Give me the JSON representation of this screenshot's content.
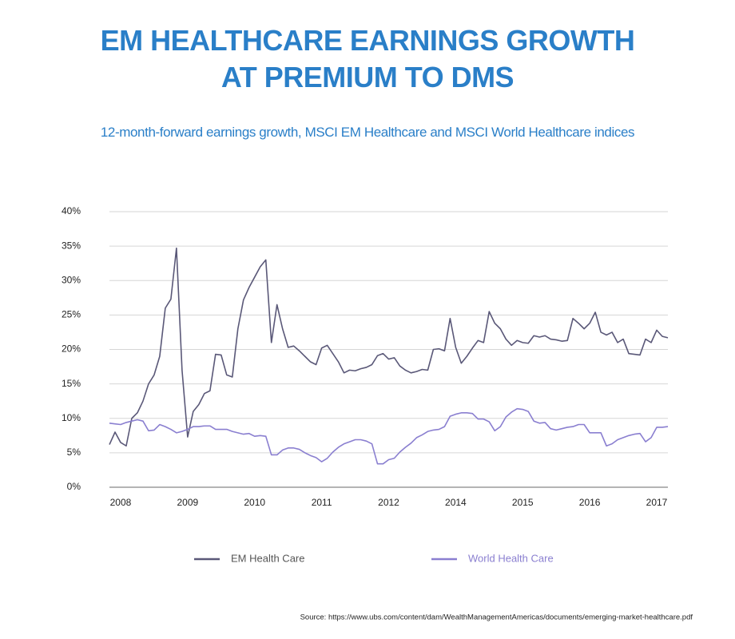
{
  "chart_data": {
    "type": "line",
    "title": "EM HEALTHCARE EARNINGS GROWTH AT PREMIUM TO DMS",
    "subtitle": "12-month-forward earnings growth, MSCI EM Healthcare and MSCI World Healthcare indices",
    "source": "Source:  https://www.ubs.com/content/dam/WealthManagementAmericas/documents/emerging-market-healthcare.pdf",
    "categories": [
      null,
      null,
      "2008",
      null,
      null,
      null,
      null,
      null,
      null,
      null,
      null,
      null,
      null,
      null,
      "2009",
      null,
      null,
      null,
      null,
      null,
      null,
      null,
      null,
      null,
      null,
      null,
      "2010",
      null,
      null,
      null,
      null,
      null,
      null,
      null,
      null,
      null,
      null,
      null,
      "2011",
      null,
      null,
      null,
      null,
      null,
      null,
      null,
      null,
      null,
      null,
      null,
      "2012",
      null,
      null,
      null,
      null,
      null,
      null,
      null,
      null,
      null,
      null,
      null,
      "2014",
      null,
      null,
      null,
      null,
      null,
      null,
      null,
      null,
      null,
      null,
      null,
      "2015",
      null,
      null,
      null,
      null,
      null,
      null,
      null,
      null,
      null,
      null,
      null,
      "2016",
      null,
      null,
      null,
      null,
      null,
      null,
      null,
      null,
      null,
      null,
      null,
      "2017",
      null,
      null
    ],
    "series": [
      {
        "name": "EM Health Care",
        "color": "#5a5878",
        "values": [
          6.2,
          8,
          6.5,
          6.0,
          10,
          10.8,
          12.5,
          15,
          16.3,
          19,
          26,
          27.3,
          34.7,
          17,
          7.3,
          11,
          12,
          13.6,
          14,
          19.3,
          19.2,
          16.3,
          16,
          23,
          27.2,
          29,
          30.5,
          32,
          33,
          21,
          26.5,
          23,
          20.3,
          20.5,
          19.8,
          19,
          18.2,
          17.8,
          20.2,
          20.6,
          19.4,
          18.2,
          16.6,
          17,
          16.9,
          17.2,
          17.4,
          17.8,
          19.1,
          19.4,
          18.6,
          18.8,
          17.6,
          17,
          16.6,
          16.8,
          17.1,
          17,
          20,
          20.1,
          19.8,
          24.5,
          20.3,
          18,
          19,
          20.2,
          21.3,
          21,
          25.5,
          23.8,
          23,
          21.5,
          20.6,
          21.3,
          21,
          20.9,
          22,
          21.8,
          22,
          21.5,
          21.4,
          21.2,
          21.3,
          24.5,
          23.8,
          23,
          23.8,
          25.4,
          22.5,
          22.1,
          22.5,
          21,
          21.5,
          19.4,
          19.3,
          19.2,
          21.5,
          21,
          22.8,
          21.9,
          21.7
        ]
      },
      {
        "name": "World Health Care",
        "color": "#8a7fd0",
        "values": [
          9.3,
          9.2,
          9.1,
          9.4,
          9.6,
          9.8,
          9.6,
          8.2,
          8.3,
          9.1,
          8.8,
          8.4,
          7.9,
          8.1,
          8.4,
          8.8,
          8.8,
          8.9,
          8.9,
          8.4,
          8.4,
          8.4,
          8.1,
          7.9,
          7.7,
          7.8,
          7.4,
          7.5,
          7.4,
          4.7,
          4.7,
          5.4,
          5.7,
          5.7,
          5.5,
          5.0,
          4.6,
          4.3,
          3.7,
          4.2,
          5.1,
          5.8,
          6.3,
          6.6,
          6.9,
          6.9,
          6.7,
          6.3,
          3.4,
          3.4,
          4.0,
          4.2,
          5.1,
          5.8,
          6.4,
          7.2,
          7.6,
          8.1,
          8.3,
          8.4,
          8.8,
          10.3,
          10.6,
          10.8,
          10.8,
          10.7,
          9.9,
          9.9,
          9.5,
          8.2,
          8.8,
          10.2,
          10.9,
          11.4,
          11.3,
          11.0,
          9.6,
          9.3,
          9.4,
          8.5,
          8.3,
          8.5,
          8.7,
          8.8,
          9.1,
          9.1,
          7.9,
          7.9,
          7.9,
          6.0,
          6.3,
          6.9,
          7.2,
          7.5,
          7.7,
          7.8,
          6.6,
          7.2,
          8.7,
          8.7,
          8.8
        ]
      }
    ],
    "ylim": [
      0,
      40
    ],
    "yticks": [
      {
        "value": 0,
        "label": "0%"
      },
      {
        "value": 5,
        "label": "5%"
      },
      {
        "value": 10,
        "label": "10%"
      },
      {
        "value": 15,
        "label": "15%"
      },
      {
        "value": 20,
        "label": "20%"
      },
      {
        "value": 25,
        "label": "25%"
      },
      {
        "value": 30,
        "label": "30%"
      },
      {
        "value": 35,
        "label": "35%"
      },
      {
        "value": 40,
        "label": "40%"
      }
    ],
    "grid": true,
    "legend": "bottom"
  }
}
